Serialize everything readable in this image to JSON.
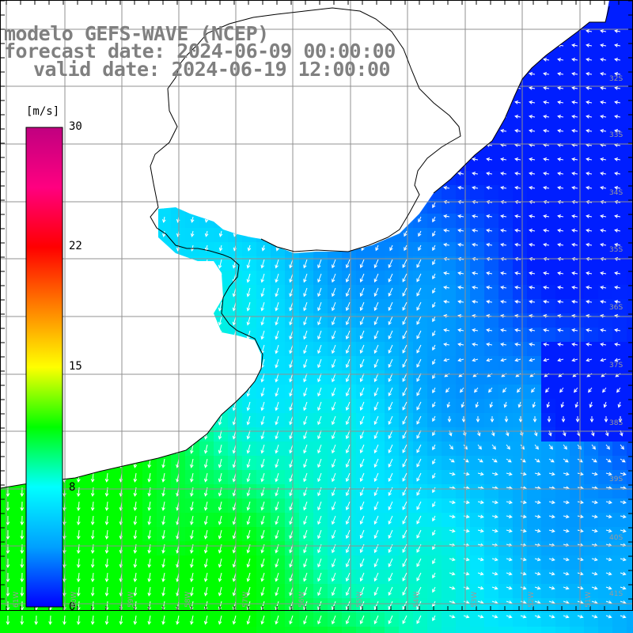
{
  "title": {
    "model": "modelo GEFS-WAVE (NCEP)",
    "forecast": "forecast date: 2024-06-09 00:00:00",
    "valid": "valid date: 2024-06-19 12:00:00"
  },
  "colorbar": {
    "unit": "[m/s]",
    "ticks": [
      "30",
      "22",
      "15",
      "8",
      "0"
    ],
    "stops": [
      "#0000ff",
      "#00a0ff",
      "#00ffff",
      "#00ff00",
      "#ffff00",
      "#ff8000",
      "#ff0000",
      "#ff0080",
      "#c00080"
    ]
  },
  "lat_labels": [
    "32S",
    "33S",
    "34S",
    "35S",
    "36S",
    "37S",
    "38S",
    "39S",
    "40S",
    "41S"
  ],
  "lon_labels": [
    "61W",
    "60W",
    "59W",
    "58W",
    "57W",
    "56W",
    "55W",
    "54W",
    "53W",
    "52W",
    "51W"
  ],
  "colors": {
    "land": "#ffffff",
    "coast": "#000000",
    "grid": "#909090",
    "arrow": "#ffffff",
    "title": "#808080"
  }
}
